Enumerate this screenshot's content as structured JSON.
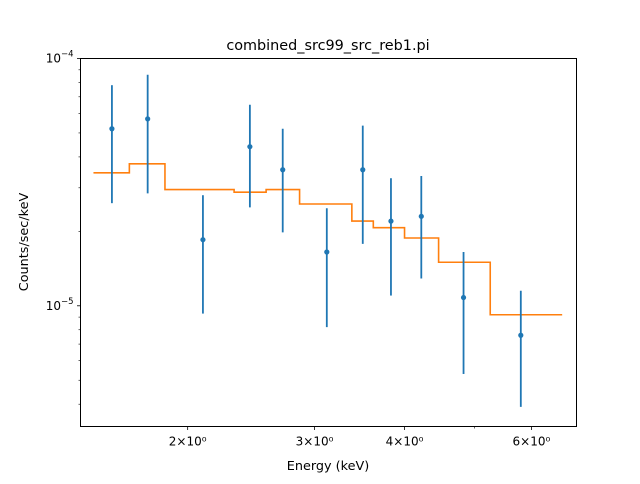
{
  "chart_data": {
    "type": "scatter",
    "title": "combined_src99_src_reb1.pi",
    "xlabel": "Energy (keV)",
    "ylabel": "Counts/sec/keV",
    "xscale": "log",
    "yscale": "log",
    "xlim": [
      1.42,
      6.93
    ],
    "ylim": [
      3.25e-06,
      0.0001
    ],
    "grid": false,
    "x_ticks": [
      {
        "value": 2,
        "label": "2×10⁰"
      },
      {
        "value": 3,
        "label": "3×10⁰"
      },
      {
        "value": 4,
        "label": "4×10⁰"
      },
      {
        "value": 6,
        "label": "6×10⁰"
      }
    ],
    "x_minor_ticks": [
      5
    ],
    "y_ticks": [
      {
        "value": 1e-05,
        "base": "10",
        "exp": "−5"
      },
      {
        "value": 0.0001,
        "base": "10",
        "exp": "−4"
      }
    ],
    "y_minor_ticks": [
      4e-06,
      5e-06,
      6e-06,
      7e-06,
      8e-06,
      9e-06,
      2e-05,
      3e-05,
      4e-05,
      5e-05,
      6e-05,
      7e-05,
      8e-05,
      9e-05
    ],
    "series": [
      {
        "type": "errorbar",
        "color": "#1f77b4",
        "points": [
          {
            "x": 1.57,
            "y": 5.2e-05,
            "ylo": 2.6e-05,
            "yhi": 7.8e-05
          },
          {
            "x": 1.76,
            "y": 5.7e-05,
            "ylo": 2.85e-05,
            "yhi": 8.6e-05
          },
          {
            "x": 2.1,
            "y": 1.85e-05,
            "ylo": 9.3e-06,
            "yhi": 2.8e-05
          },
          {
            "x": 2.44,
            "y": 4.4e-05,
            "ylo": 2.5e-05,
            "yhi": 6.5e-05
          },
          {
            "x": 2.71,
            "y": 3.55e-05,
            "ylo": 1.98e-05,
            "yhi": 5.2e-05
          },
          {
            "x": 3.12,
            "y": 1.65e-05,
            "ylo": 8.2e-06,
            "yhi": 2.48e-05
          },
          {
            "x": 3.5,
            "y": 3.55e-05,
            "ylo": 1.78e-05,
            "yhi": 5.35e-05
          },
          {
            "x": 3.83,
            "y": 2.2e-05,
            "ylo": 1.1e-05,
            "yhi": 3.28e-05
          },
          {
            "x": 4.22,
            "y": 2.3e-05,
            "ylo": 1.29e-05,
            "yhi": 3.35e-05
          },
          {
            "x": 4.83,
            "y": 1.08e-05,
            "ylo": 5.3e-06,
            "yhi": 1.65e-05
          },
          {
            "x": 5.8,
            "y": 7.6e-06,
            "ylo": 3.9e-06,
            "yhi": 1.15e-05
          }
        ]
      },
      {
        "type": "step",
        "color": "#ff7f0e",
        "steps": [
          {
            "x0": 1.48,
            "x1": 1.66,
            "y": 3.45e-05
          },
          {
            "x0": 1.66,
            "x1": 1.86,
            "y": 3.75e-05
          },
          {
            "x0": 1.86,
            "x1": 2.32,
            "y": 2.95e-05
          },
          {
            "x0": 2.32,
            "x1": 2.57,
            "y": 2.88e-05
          },
          {
            "x0": 2.57,
            "x1": 2.86,
            "y": 2.95e-05
          },
          {
            "x0": 2.86,
            "x1": 3.38,
            "y": 2.58e-05
          },
          {
            "x0": 3.38,
            "x1": 3.62,
            "y": 2.2e-05
          },
          {
            "x0": 3.62,
            "x1": 4.0,
            "y": 2.07e-05
          },
          {
            "x0": 4.0,
            "x1": 4.46,
            "y": 1.88e-05
          },
          {
            "x0": 4.46,
            "x1": 5.26,
            "y": 1.5e-05
          },
          {
            "x0": 5.26,
            "x1": 6.62,
            "y": 9.2e-06
          }
        ]
      }
    ]
  }
}
